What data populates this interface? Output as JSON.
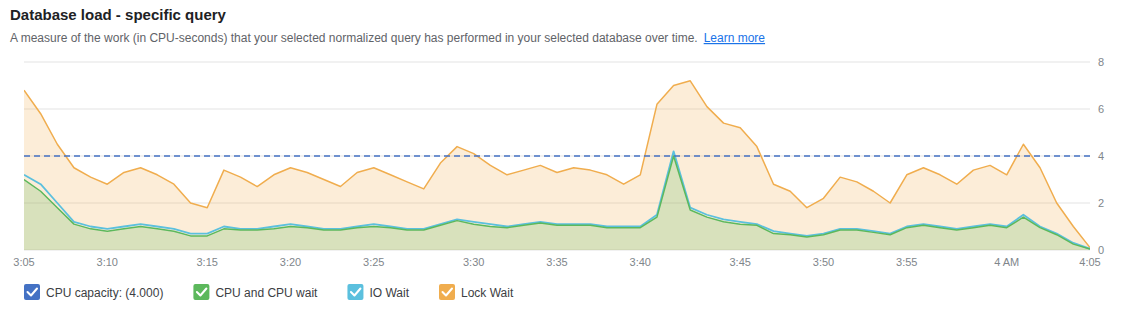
{
  "chart_data": {
    "type": "line",
    "title": "Database load - specific query",
    "subtitle": "A measure of the work (in CPU-seconds) that your selected normalized query has performed in your selected database over time.",
    "annotations": [
      "Learn more"
    ],
    "categories": [
      "3:05",
      null,
      null,
      null,
      null,
      "3:10",
      null,
      null,
      null,
      null,
      null,
      "3:15",
      null,
      null,
      null,
      null,
      "3:20",
      null,
      null,
      null,
      null,
      "3:25",
      null,
      null,
      null,
      null,
      null,
      "3:30",
      null,
      null,
      null,
      null,
      "3:35",
      null,
      null,
      null,
      null,
      "3:40",
      null,
      null,
      null,
      null,
      null,
      "3:45",
      null,
      null,
      null,
      null,
      "3:50",
      null,
      null,
      null,
      null,
      "3:55",
      null,
      null,
      null,
      null,
      null,
      "4 AM",
      null,
      null,
      null,
      null,
      "4:05"
    ],
    "series": [
      {
        "name": "CPU capacity: (4.000)",
        "type": "hline",
        "value": 4.0,
        "color": "#4472c4",
        "line_style": "dashed"
      },
      {
        "name": "CPU and CPU wait",
        "type": "area",
        "color": "#5cb85c",
        "values": [
          3.0,
          2.5,
          1.8,
          1.1,
          0.9,
          0.8,
          0.9,
          1.0,
          0.9,
          0.8,
          0.6,
          0.6,
          0.9,
          0.85,
          0.85,
          0.9,
          1.0,
          0.95,
          0.85,
          0.85,
          0.95,
          1.0,
          0.95,
          0.85,
          0.85,
          1.05,
          1.25,
          1.1,
          1.0,
          0.95,
          1.05,
          1.15,
          1.05,
          1.05,
          1.05,
          0.95,
          0.95,
          0.95,
          1.4,
          4.0,
          1.7,
          1.4,
          1.2,
          1.1,
          1.05,
          0.7,
          0.65,
          0.55,
          0.65,
          0.85,
          0.85,
          0.75,
          0.65,
          0.95,
          1.05,
          0.95,
          0.85,
          0.95,
          1.05,
          0.95,
          1.4,
          0.95,
          0.65,
          0.25,
          0.04
        ]
      },
      {
        "name": "IO Wait",
        "type": "line",
        "color": "#5bc0de",
        "values": [
          3.2,
          2.8,
          2.0,
          1.2,
          1.0,
          0.9,
          1.0,
          1.1,
          1.0,
          0.9,
          0.7,
          0.7,
          1.0,
          0.9,
          0.9,
          1.0,
          1.1,
          1.0,
          0.9,
          0.9,
          1.0,
          1.1,
          1.0,
          0.9,
          0.9,
          1.1,
          1.3,
          1.2,
          1.1,
          1.0,
          1.1,
          1.2,
          1.1,
          1.1,
          1.1,
          1.0,
          1.0,
          1.0,
          1.5,
          4.2,
          1.8,
          1.5,
          1.3,
          1.2,
          1.1,
          0.8,
          0.7,
          0.6,
          0.7,
          0.9,
          0.9,
          0.8,
          0.7,
          1.0,
          1.1,
          1.0,
          0.9,
          1.0,
          1.1,
          1.0,
          1.5,
          1.0,
          0.7,
          0.3,
          0.05
        ]
      },
      {
        "name": "Lock Wait",
        "type": "area",
        "color": "#f0ad4e",
        "values": [
          6.8,
          5.8,
          4.5,
          3.5,
          3.1,
          2.8,
          3.3,
          3.5,
          3.2,
          2.8,
          2.0,
          1.8,
          3.4,
          3.1,
          2.7,
          3.2,
          3.5,
          3.3,
          3.0,
          2.7,
          3.3,
          3.5,
          3.2,
          2.9,
          2.6,
          3.7,
          4.4,
          4.1,
          3.6,
          3.2,
          3.4,
          3.6,
          3.3,
          3.5,
          3.4,
          3.2,
          2.8,
          3.2,
          6.2,
          7.0,
          7.2,
          6.1,
          5.4,
          5.2,
          4.4,
          2.8,
          2.5,
          1.8,
          2.2,
          3.1,
          2.9,
          2.5,
          2.0,
          3.2,
          3.5,
          3.2,
          2.8,
          3.4,
          3.6,
          3.2,
          4.5,
          3.5,
          2.0,
          1.0,
          0.1
        ]
      }
    ],
    "ylim": [
      0,
      8
    ],
    "yticks": [
      0,
      2,
      4,
      6,
      8
    ],
    "grid": true,
    "legend": "bottom"
  }
}
